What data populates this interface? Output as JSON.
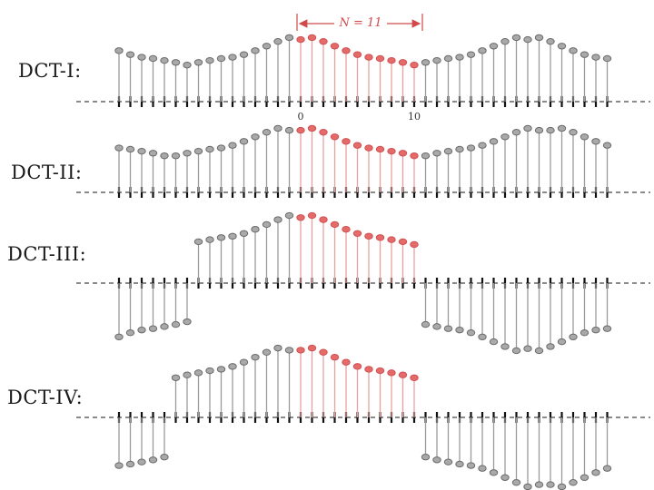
{
  "labels": {
    "dct1": "DCT-I:",
    "dct2": "DCT-II:",
    "dct3": "DCT-III:",
    "dct4": "DCT-IV:"
  },
  "annotation": {
    "period": "N = 11",
    "tick_start": "0",
    "tick_end": "10"
  },
  "colors": {
    "highlight": "#e56a6a",
    "sample": "#a9a9a9",
    "stem": "#9a9a9a",
    "axis": "#444444"
  },
  "sequence": [
    0.95,
    0.98,
    0.92,
    0.85,
    0.78,
    0.72,
    0.68,
    0.66,
    0.63,
    0.6,
    0.56
  ],
  "panels": [
    {
      "name": "dct-i",
      "left": "even",
      "right": "even",
      "left_boundary": "whole-sample",
      "right_boundary": "whole-sample"
    },
    {
      "name": "dct-ii",
      "left": "even",
      "right": "even",
      "left_boundary": "half-sample",
      "right_boundary": "half-sample"
    },
    {
      "name": "dct-iii",
      "left": "even",
      "right": "odd",
      "left_boundary": "whole-sample",
      "right_boundary": "whole-sample"
    },
    {
      "name": "dct-iv",
      "left": "even",
      "right": "odd",
      "left_boundary": "half-sample",
      "right_boundary": "half-sample"
    }
  ]
}
